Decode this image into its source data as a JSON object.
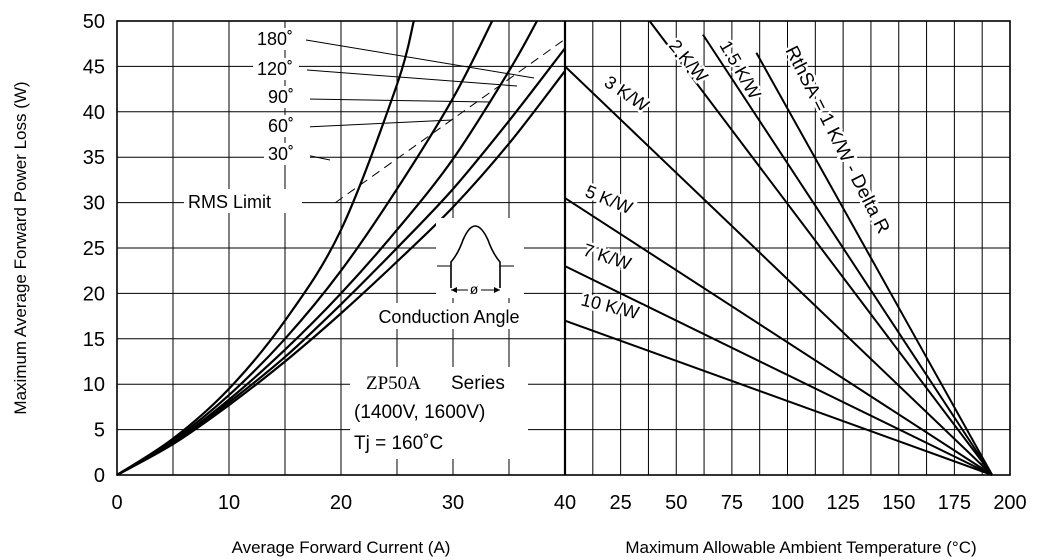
{
  "chart_data": [
    {
      "type": "line",
      "title": "",
      "xlabel": "Average Forward Current (A)",
      "ylabel": "Maximum Average Forward Power Loss (W)",
      "xlim": [
        0,
        40
      ],
      "ylim": [
        0,
        50
      ],
      "x_ticks": [
        "0",
        "10",
        "20",
        "30",
        "40"
      ],
      "y_ticks": [
        "0",
        "5",
        "10",
        "15",
        "20",
        "25",
        "30",
        "35",
        "40",
        "45",
        "50"
      ],
      "grid": true,
      "series": [
        {
          "name": "180˚",
          "x": [
            0,
            5,
            10,
            15,
            20,
            25,
            26.5
          ],
          "y": [
            0,
            4.0,
            9.5,
            17.0,
            27.0,
            43.0,
            50.0
          ]
        },
        {
          "name": "120˚",
          "x": [
            0,
            5,
            10,
            15,
            20,
            25,
            30,
            33.5
          ],
          "y": [
            0,
            3.8,
            8.8,
            15.0,
            22.5,
            31.5,
            41.5,
            50.0
          ]
        },
        {
          "name": "90˚",
          "x": [
            0,
            5,
            10,
            15,
            20,
            25,
            30,
            35,
            37.5
          ],
          "y": [
            0,
            3.6,
            8.3,
            13.8,
            20.0,
            27.0,
            34.8,
            44.5,
            50.0
          ]
        },
        {
          "name": "60˚",
          "x": [
            0,
            5,
            10,
            15,
            20,
            25,
            30,
            35,
            40
          ],
          "y": [
            0,
            3.5,
            8.0,
            13.0,
            18.8,
            25.0,
            31.5,
            39.0,
            47.0
          ]
        },
        {
          "name": "30˚",
          "x": [
            0,
            5,
            10,
            15,
            20,
            25,
            30,
            35,
            40
          ],
          "y": [
            0,
            3.4,
            7.7,
            12.5,
            17.8,
            23.5,
            29.5,
            36.5,
            44.5
          ]
        },
        {
          "name": "RMS Limit",
          "x": [
            19.5,
            40
          ],
          "y": [
            30.0,
            48.0
          ]
        }
      ],
      "annotations": {
        "conduction_label": "Conduction Angle",
        "phi": "ø",
        "part_number": "ZP50A",
        "series_word": "Series",
        "voltages": "(1400V, 1600V)",
        "tj": "Tj = 160˚C"
      }
    },
    {
      "type": "line",
      "title": "",
      "xlabel": "Maximum Allowable Ambient Temperature (°C)",
      "ylabel": "",
      "xlim": [
        0,
        200
      ],
      "x_ticks": [
        "40",
        "25",
        "50",
        "75",
        "100",
        "125",
        "150",
        "175",
        "200"
      ],
      "grid": true,
      "series": [
        {
          "name": "RthSA = 1 K/W - Delta R",
          "x": [
            86,
            192
          ],
          "y": [
            46.5,
            0
          ]
        },
        {
          "name": "1.5 K/W",
          "x": [
            62,
            192
          ],
          "y": [
            48.5,
            0
          ]
        },
        {
          "name": "2 K/W",
          "x": [
            38,
            192
          ],
          "y": [
            50,
            0
          ]
        },
        {
          "name": "3 K/W",
          "x": [
            0,
            192
          ],
          "y": [
            45,
            0
          ]
        },
        {
          "name": "5 K/W",
          "x": [
            0,
            192
          ],
          "y": [
            30.5,
            0
          ]
        },
        {
          "name": "7 K/W",
          "x": [
            0,
            192
          ],
          "y": [
            23,
            0
          ]
        },
        {
          "name": "10 K/W",
          "x": [
            0,
            192
          ],
          "y": [
            17,
            0
          ]
        }
      ]
    }
  ]
}
